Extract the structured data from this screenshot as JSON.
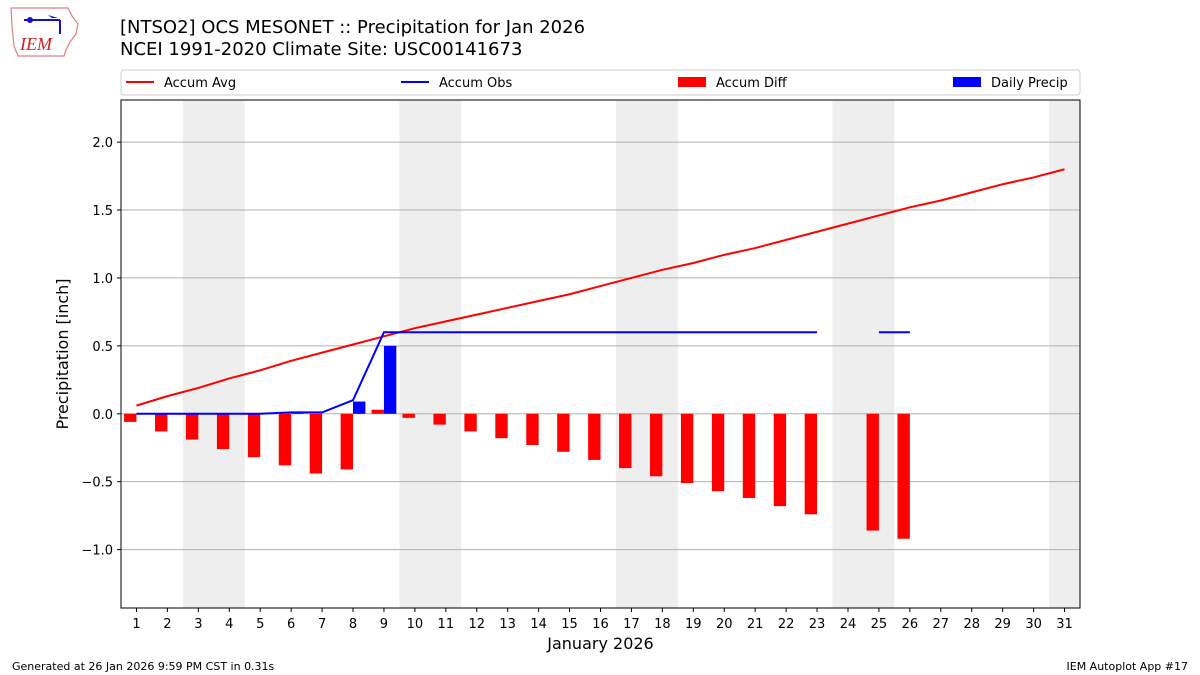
{
  "header": {
    "title_line1": "[NTSO2] OCS MESONET :: Precipitation for Jan 2026",
    "title_line2": "NCEI 1991-2020 Climate Site: USC00141673",
    "logo_text": "IEM"
  },
  "footer": {
    "left": "Generated at 26 Jan 2026 9:59 PM CST in 0.31s",
    "right": "IEM Autoplot App #17"
  },
  "chart_data": {
    "type": "bar",
    "xlabel": "January 2026",
    "ylabel": "Precipitation [inch]",
    "xlim": [
      0.5,
      31.5
    ],
    "ylim": [
      -1.43,
      2.31
    ],
    "grid": true,
    "legend_position": "top",
    "x": [
      1,
      2,
      3,
      4,
      5,
      6,
      7,
      8,
      9,
      10,
      11,
      12,
      13,
      14,
      15,
      16,
      17,
      18,
      19,
      20,
      21,
      22,
      23,
      24,
      25,
      26,
      27,
      28,
      29,
      30,
      31
    ],
    "xticks": [
      "1",
      "2",
      "3",
      "4",
      "5",
      "6",
      "7",
      "8",
      "9",
      "10",
      "11",
      "12",
      "13",
      "14",
      "15",
      "16",
      "17",
      "18",
      "19",
      "20",
      "21",
      "22",
      "23",
      "24",
      "25",
      "26",
      "27",
      "28",
      "29",
      "30",
      "31"
    ],
    "yticks": [
      -1.0,
      -0.5,
      0.0,
      0.5,
      1.0,
      1.5,
      2.0
    ],
    "ytick_labels": [
      "−1.0",
      "−0.5",
      "0.0",
      "0.5",
      "1.0",
      "1.5",
      "2.0"
    ],
    "weekend_shading": [
      [
        2.5,
        4.5
      ],
      [
        9.5,
        11.5
      ],
      [
        16.5,
        18.5
      ],
      [
        23.5,
        25.5
      ],
      [
        30.5,
        31.5
      ]
    ],
    "series": [
      {
        "name": "Accum Avg",
        "kind": "line",
        "color": "#ff0000",
        "values": [
          0.06,
          0.13,
          0.19,
          0.26,
          0.32,
          0.39,
          0.45,
          0.51,
          0.57,
          0.63,
          0.68,
          0.73,
          0.78,
          0.83,
          0.88,
          0.94,
          1.0,
          1.06,
          1.11,
          1.17,
          1.22,
          1.28,
          1.34,
          1.4,
          1.46,
          1.52,
          1.57,
          1.63,
          1.69,
          1.74,
          1.8
        ]
      },
      {
        "name": "Accum Obs",
        "kind": "line",
        "color": "#0000ff",
        "values": [
          0,
          0,
          0,
          0,
          0,
          0.01,
          0.01,
          0.1,
          0.6,
          0.6,
          0.6,
          0.6,
          0.6,
          0.6,
          0.6,
          0.6,
          0.6,
          0.6,
          0.6,
          0.6,
          0.6,
          0.6,
          0.6,
          null,
          0.6,
          0.6,
          null,
          null,
          null,
          null,
          null
        ]
      },
      {
        "name": "Accum Diff",
        "kind": "bar",
        "color": "#ff0000",
        "values": [
          -0.06,
          -0.13,
          -0.19,
          -0.26,
          -0.32,
          -0.38,
          -0.44,
          -0.41,
          0.03,
          -0.03,
          -0.08,
          -0.13,
          -0.18,
          -0.23,
          -0.28,
          -0.34,
          -0.4,
          -0.46,
          -0.51,
          -0.57,
          -0.62,
          -0.68,
          -0.74,
          null,
          -0.86,
          -0.92,
          null,
          null,
          null,
          null,
          null
        ]
      },
      {
        "name": "Daily Precip",
        "kind": "bar",
        "color": "#0000ff",
        "values": [
          0,
          0,
          0,
          0,
          0,
          0.01,
          0,
          0.09,
          0.5,
          0,
          0,
          0,
          0,
          0,
          0,
          0,
          0,
          0,
          0,
          0,
          0,
          0,
          0,
          null,
          0,
          0,
          null,
          null,
          null,
          null,
          null
        ]
      }
    ]
  }
}
